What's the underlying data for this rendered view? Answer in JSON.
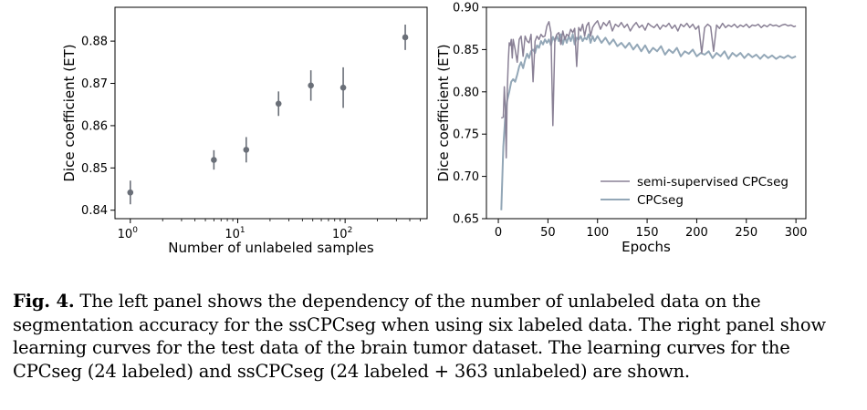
{
  "chart_data": [
    {
      "type": "scatter",
      "title": "",
      "xlabel": "Number of unlabeled samples",
      "ylabel": "Dice coefficient (ET)",
      "xscale": "log",
      "xlim": [
        0.72,
        580
      ],
      "ylim": [
        0.838,
        0.888
      ],
      "x_ticks": [
        {
          "value": 1,
          "base": "10",
          "exp": "0"
        },
        {
          "value": 10,
          "base": "10",
          "exp": "1"
        },
        {
          "value": 100,
          "base": "10",
          "exp": "2"
        }
      ],
      "y_ticks": [
        "0.84",
        "0.85",
        "0.86",
        "0.87",
        "0.88"
      ],
      "y_tick_values": [
        0.84,
        0.85,
        0.86,
        0.87,
        0.88
      ],
      "color": "#6a6f78",
      "points": [
        {
          "x": 1,
          "y": 0.8442,
          "err": 0.0028
        },
        {
          "x": 6,
          "y": 0.8519,
          "err": 0.0023
        },
        {
          "x": 12,
          "y": 0.8543,
          "err": 0.003
        },
        {
          "x": 24,
          "y": 0.8652,
          "err": 0.0029
        },
        {
          "x": 48,
          "y": 0.8695,
          "err": 0.0036
        },
        {
          "x": 96,
          "y": 0.869,
          "err": 0.0048
        },
        {
          "x": 363,
          "y": 0.8809,
          "err": 0.003
        }
      ]
    },
    {
      "type": "line",
      "title": "",
      "xlabel": "Epochs",
      "ylabel": "Dice coefficient (ET)",
      "xlim": [
        -12,
        310
      ],
      "ylim": [
        0.65,
        0.9
      ],
      "x_ticks": [
        "0",
        "50",
        "100",
        "150",
        "200",
        "250",
        "300"
      ],
      "x_tick_values": [
        0,
        50,
        100,
        150,
        200,
        250,
        300
      ],
      "y_ticks": [
        "0.65",
        "0.70",
        "0.75",
        "0.80",
        "0.85",
        "0.90"
      ],
      "y_tick_values": [
        0.65,
        0.7,
        0.75,
        0.8,
        0.85,
        0.9
      ],
      "legend_position": "lower-right",
      "series": [
        {
          "name": "semi-supervised CPCseg",
          "color": "#8a8196",
          "x": [
            3,
            5,
            6,
            7,
            8,
            9,
            10,
            11,
            12,
            13,
            14,
            15,
            17,
            19,
            21,
            23,
            25,
            27,
            29,
            31,
            33,
            35,
            37,
            39,
            41,
            43,
            45,
            47,
            49,
            51,
            53,
            55,
            57,
            59,
            61,
            63,
            65,
            67,
            69,
            71,
            73,
            75,
            77,
            79,
            81,
            83,
            85,
            87,
            89,
            91,
            93,
            95,
            97,
            100,
            103,
            106,
            109,
            112,
            115,
            118,
            121,
            124,
            127,
            130,
            133,
            136,
            139,
            142,
            145,
            148,
            151,
            154,
            157,
            160,
            163,
            166,
            169,
            172,
            175,
            178,
            181,
            184,
            187,
            190,
            193,
            196,
            199,
            202,
            205,
            208,
            211,
            214,
            217,
            220,
            223,
            226,
            229,
            232,
            235,
            238,
            241,
            244,
            247,
            250,
            253,
            256,
            259,
            262,
            265,
            268,
            271,
            274,
            277,
            280,
            283,
            286,
            289,
            292,
            295,
            298,
            300
          ],
          "y": [
            0.769,
            0.77,
            0.806,
            0.78,
            0.722,
            0.8,
            0.835,
            0.858,
            0.855,
            0.862,
            0.84,
            0.862,
            0.85,
            0.835,
            0.862,
            0.866,
            0.842,
            0.866,
            0.86,
            0.858,
            0.868,
            0.812,
            0.86,
            0.866,
            0.862,
            0.868,
            0.865,
            0.866,
            0.878,
            0.883,
            0.87,
            0.76,
            0.862,
            0.868,
            0.87,
            0.856,
            0.872,
            0.862,
            0.868,
            0.866,
            0.874,
            0.87,
            0.875,
            0.83,
            0.876,
            0.872,
            0.88,
            0.866,
            0.878,
            0.882,
            0.866,
            0.876,
            0.88,
            0.884,
            0.874,
            0.882,
            0.878,
            0.884,
            0.872,
            0.88,
            0.877,
            0.882,
            0.876,
            0.88,
            0.872,
            0.878,
            0.882,
            0.876,
            0.879,
            0.873,
            0.881,
            0.878,
            0.876,
            0.88,
            0.874,
            0.879,
            0.877,
            0.881,
            0.875,
            0.879,
            0.872,
            0.88,
            0.877,
            0.881,
            0.876,
            0.88,
            0.874,
            0.878,
            0.846,
            0.876,
            0.88,
            0.877,
            0.848,
            0.879,
            0.875,
            0.881,
            0.876,
            0.879,
            0.877,
            0.88,
            0.876,
            0.879,
            0.877,
            0.88,
            0.876,
            0.879,
            0.878,
            0.88,
            0.876,
            0.879,
            0.877,
            0.88,
            0.878,
            0.879,
            0.877,
            0.879,
            0.88,
            0.878,
            0.879,
            0.877,
            0.878
          ]
        },
        {
          "name": "CPCseg",
          "color": "#93a7b7",
          "x": [
            3,
            5,
            7,
            9,
            11,
            13,
            15,
            17,
            19,
            21,
            23,
            25,
            27,
            29,
            31,
            33,
            35,
            37,
            39,
            41,
            43,
            45,
            47,
            49,
            51,
            53,
            55,
            57,
            59,
            61,
            63,
            65,
            67,
            69,
            71,
            73,
            75,
            77,
            79,
            81,
            83,
            85,
            87,
            89,
            91,
            93,
            95,
            97,
            100,
            104,
            108,
            112,
            116,
            120,
            124,
            128,
            132,
            136,
            140,
            144,
            148,
            152,
            156,
            160,
            164,
            168,
            172,
            176,
            180,
            184,
            188,
            192,
            196,
            200,
            204,
            208,
            212,
            216,
            220,
            224,
            228,
            232,
            236,
            240,
            244,
            248,
            252,
            256,
            260,
            264,
            268,
            272,
            276,
            280,
            284,
            288,
            292,
            296,
            300
          ],
          "y": [
            0.66,
            0.735,
            0.772,
            0.79,
            0.8,
            0.812,
            0.815,
            0.812,
            0.82,
            0.83,
            0.835,
            0.828,
            0.838,
            0.845,
            0.84,
            0.848,
            0.85,
            0.846,
            0.855,
            0.852,
            0.86,
            0.856,
            0.862,
            0.858,
            0.862,
            0.855,
            0.865,
            0.86,
            0.866,
            0.86,
            0.868,
            0.856,
            0.865,
            0.858,
            0.866,
            0.86,
            0.868,
            0.856,
            0.864,
            0.862,
            0.866,
            0.86,
            0.864,
            0.862,
            0.868,
            0.858,
            0.866,
            0.86,
            0.866,
            0.858,
            0.864,
            0.856,
            0.862,
            0.854,
            0.858,
            0.852,
            0.858,
            0.85,
            0.856,
            0.848,
            0.855,
            0.846,
            0.852,
            0.848,
            0.854,
            0.844,
            0.85,
            0.846,
            0.852,
            0.842,
            0.848,
            0.845,
            0.85,
            0.842,
            0.846,
            0.844,
            0.848,
            0.84,
            0.846,
            0.842,
            0.848,
            0.839,
            0.846,
            0.842,
            0.846,
            0.84,
            0.845,
            0.841,
            0.844,
            0.839,
            0.844,
            0.84,
            0.843,
            0.839,
            0.842,
            0.84,
            0.843,
            0.84,
            0.842
          ]
        }
      ]
    }
  ],
  "caption": {
    "label": "Fig. 4.",
    "text": " The left panel shows the dependency of the number of unlabeled data on the segmentation accuracy for the ssCPCseg when using six labeled data. The right panel show learning curves for the test data of the brain tumor dataset. The learning curves for the CPCseg (24 labeled) and ssCPCseg (24 labeled + 363 unlabeled) are shown."
  }
}
